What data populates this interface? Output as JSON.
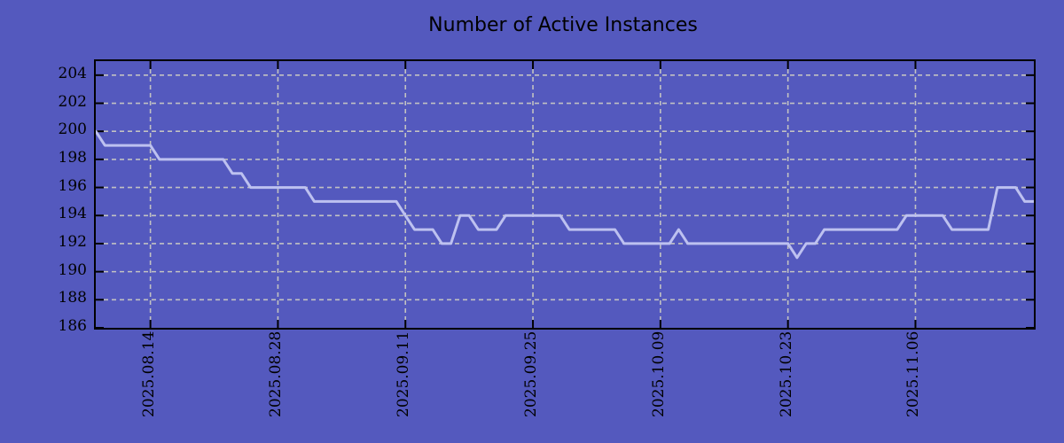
{
  "title": "Number of Active Instances",
  "colors": {
    "background": "#5459BE",
    "line": "#BDC1F0",
    "grid": "#C2C2C2",
    "axis": "#000000",
    "text": "#000000"
  },
  "chart_data": {
    "type": "line",
    "title": "Number of Active Instances",
    "xlabel": "",
    "ylabel": "",
    "x_start_date": "2025-08-08",
    "x_end_date": "2025-11-19",
    "frequency": "daily",
    "values": [
      200,
      199,
      199,
      199,
      199,
      199,
      199,
      198,
      198,
      198,
      198,
      198,
      198,
      198,
      198,
      197,
      197,
      196,
      196,
      196,
      196,
      196,
      196,
      196,
      195,
      195,
      195,
      195,
      195,
      195,
      195,
      195,
      195,
      195,
      194,
      193,
      193,
      193,
      192,
      192,
      194,
      194,
      193,
      193,
      193,
      194,
      194,
      194,
      194,
      194,
      194,
      194,
      193,
      193,
      193,
      193,
      193,
      193,
      192,
      192,
      192,
      192,
      192,
      192,
      193,
      192,
      192,
      192,
      192,
      192,
      192,
      192,
      192,
      192,
      192,
      192,
      192,
      191,
      192,
      192,
      193,
      193,
      193,
      193,
      193,
      193,
      193,
      193,
      193,
      194,
      194,
      194,
      194,
      194,
      193,
      193,
      193,
      193,
      193,
      196,
      196,
      196,
      195,
      195
    ],
    "ylim": [
      186,
      205
    ],
    "yticks": [
      186,
      188,
      190,
      192,
      194,
      196,
      198,
      200,
      202,
      204
    ],
    "xtick_labels": [
      "2025.08.14",
      "2025.08.28",
      "2025.09.11",
      "2025.09.25",
      "2025.10.09",
      "2025.10.23",
      "2025.11.06"
    ],
    "xtick_day_offsets": [
      6,
      20,
      34,
      48,
      62,
      76,
      90
    ],
    "total_days": 103,
    "grid": true,
    "grid_style": "dashed",
    "legend": false,
    "line_width": 3
  }
}
